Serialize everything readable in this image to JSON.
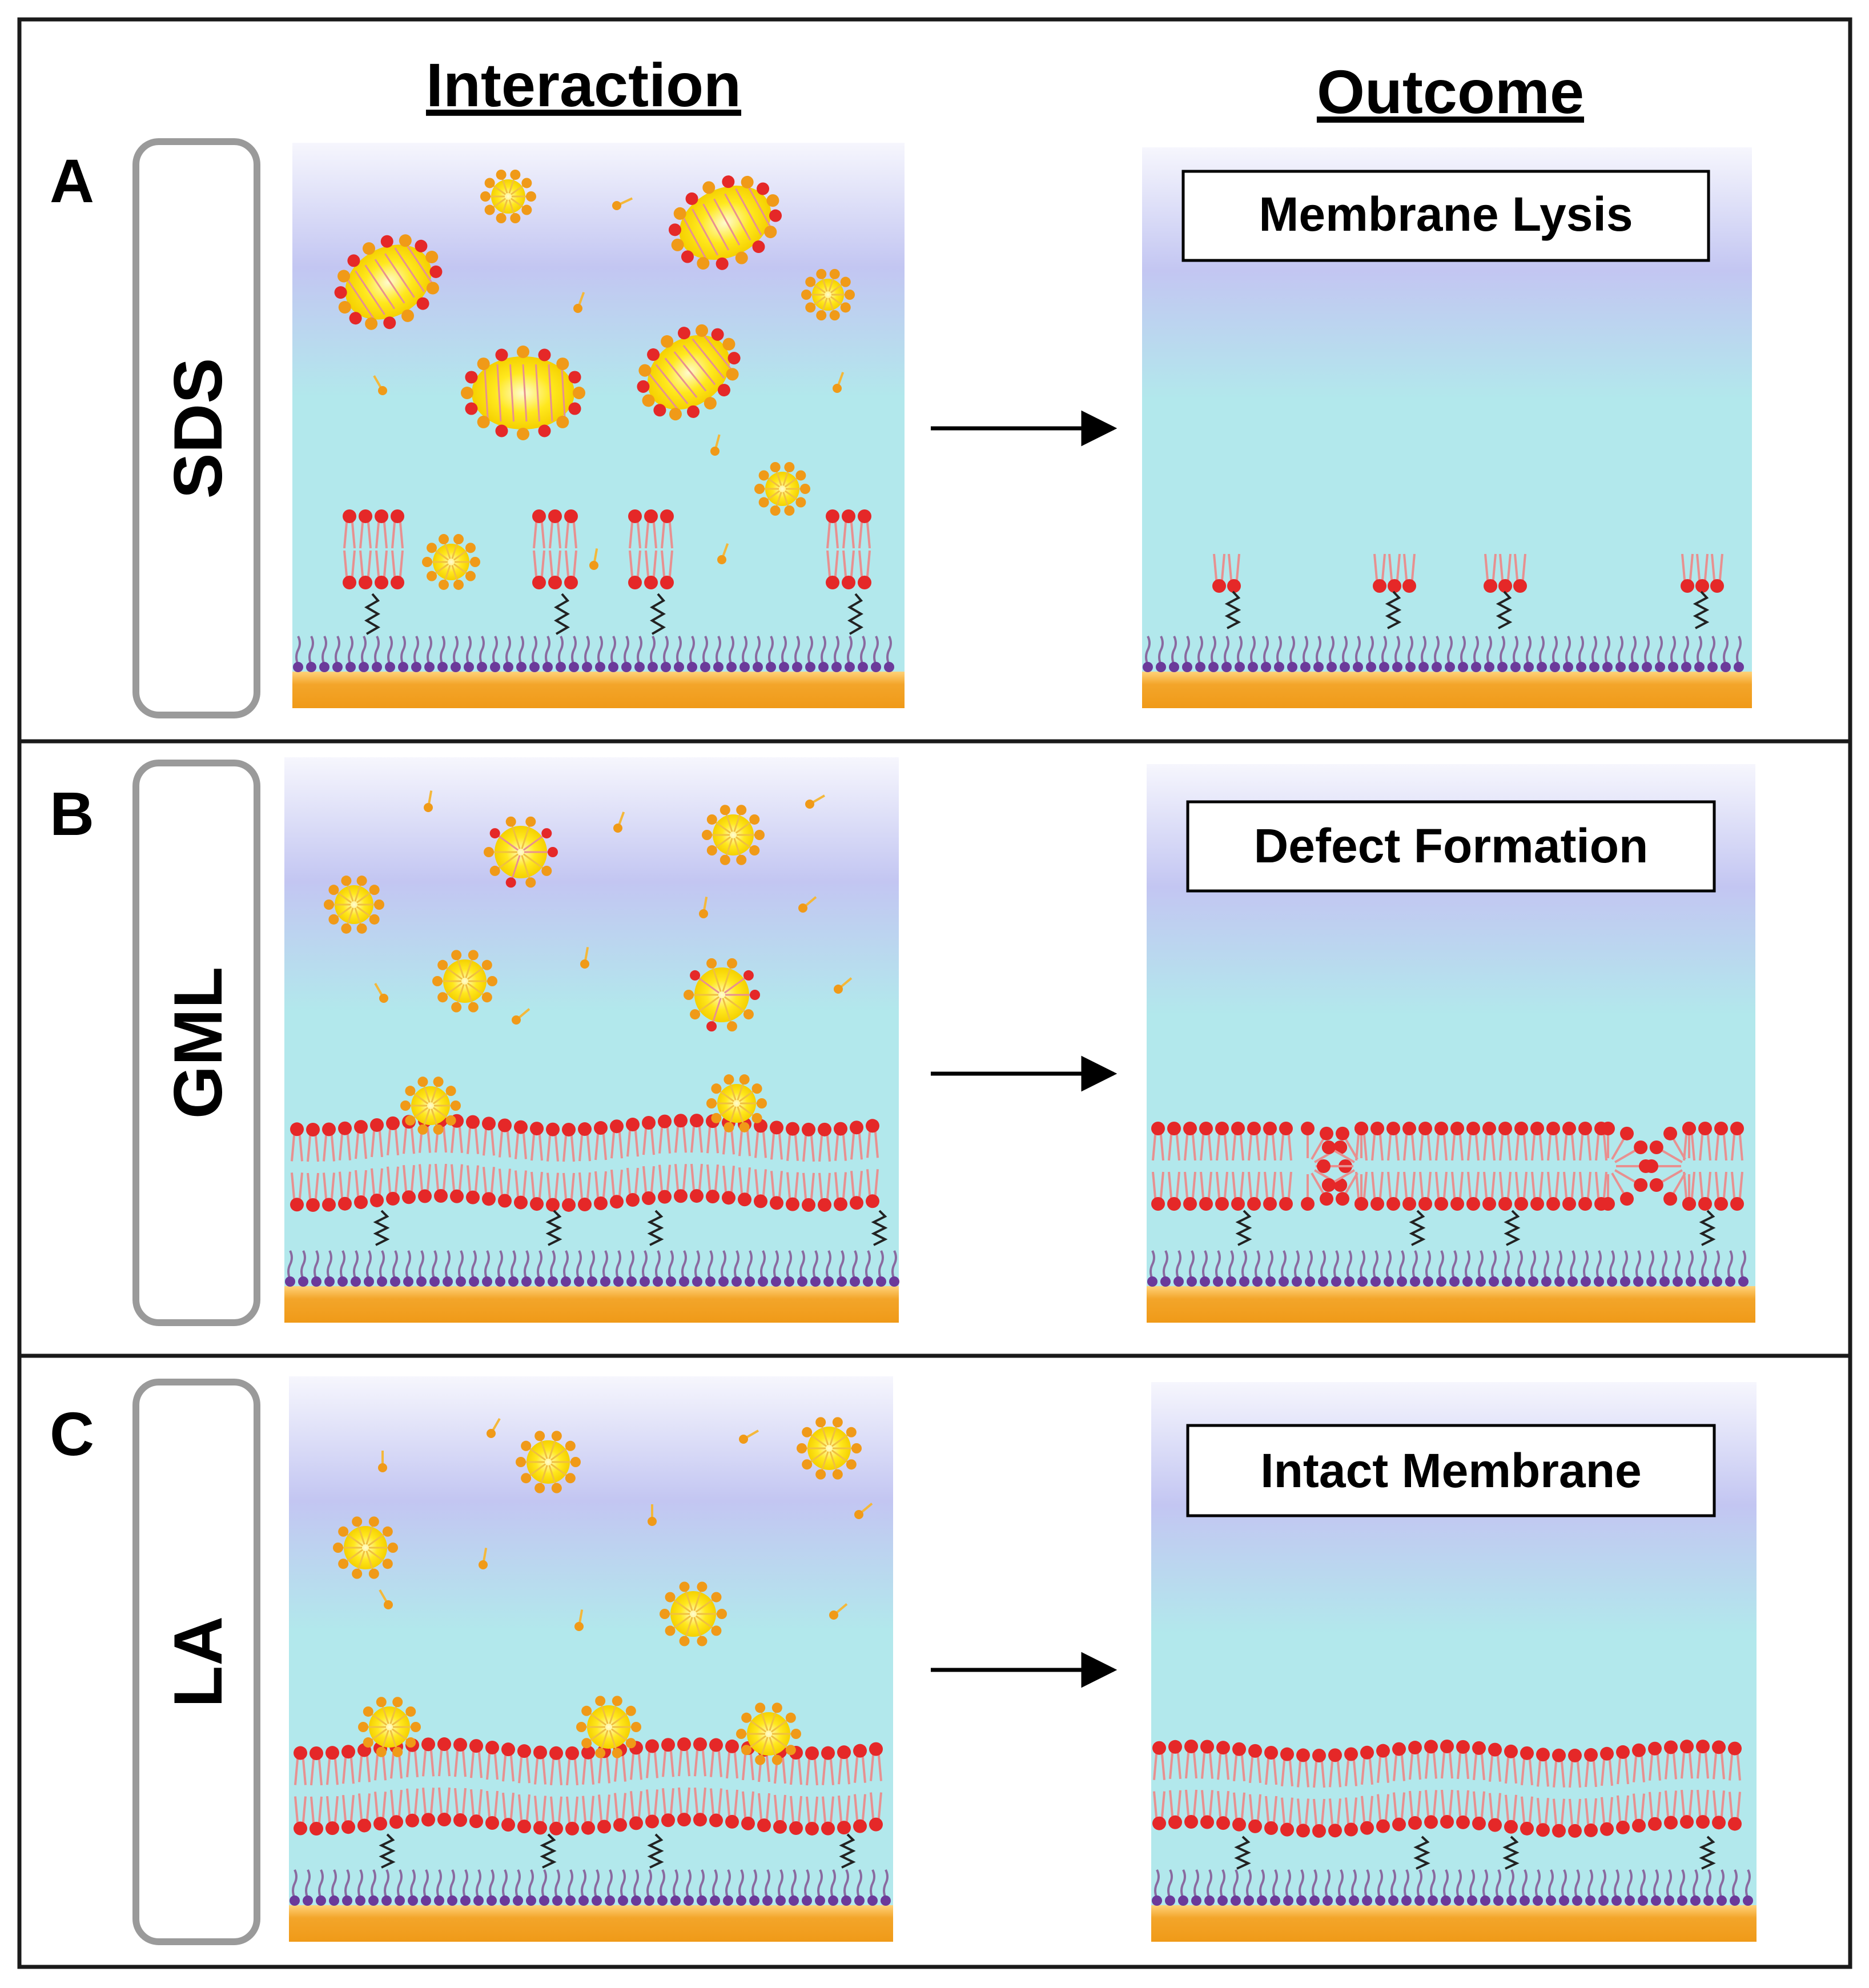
{
  "headers": {
    "interaction": "Interaction",
    "outcome": "Outcome"
  },
  "panels": [
    {
      "letter": "A",
      "compound": "SDS",
      "outcome_label": "Membrane Lysis",
      "result": "lysis"
    },
    {
      "letter": "B",
      "compound": "GML",
      "outcome_label": "Defect Formation",
      "result": "defects"
    },
    {
      "letter": "C",
      "compound": "LA",
      "outcome_label": "Intact Membrane",
      "result": "intact"
    }
  ],
  "colors": {
    "frame": "#1a1a1a",
    "tag_border": "#9a9a9a",
    "water": "#b2e8ec",
    "water_top": "#f6f6fd",
    "water_mid": "#c3c6f2",
    "substrate": "#f3a52a",
    "substrate_light": "#ffd27a",
    "tether_head": "#6b3a9a",
    "tether_tail": "#8a6aa0",
    "lipid_head": "#e52828",
    "lipid_tail": "#e89090",
    "surfactant_head": "#f09a18",
    "surfactant_tail": "#f4b83a",
    "micelle_core": "#ffe81e",
    "arrow": "#000000"
  }
}
